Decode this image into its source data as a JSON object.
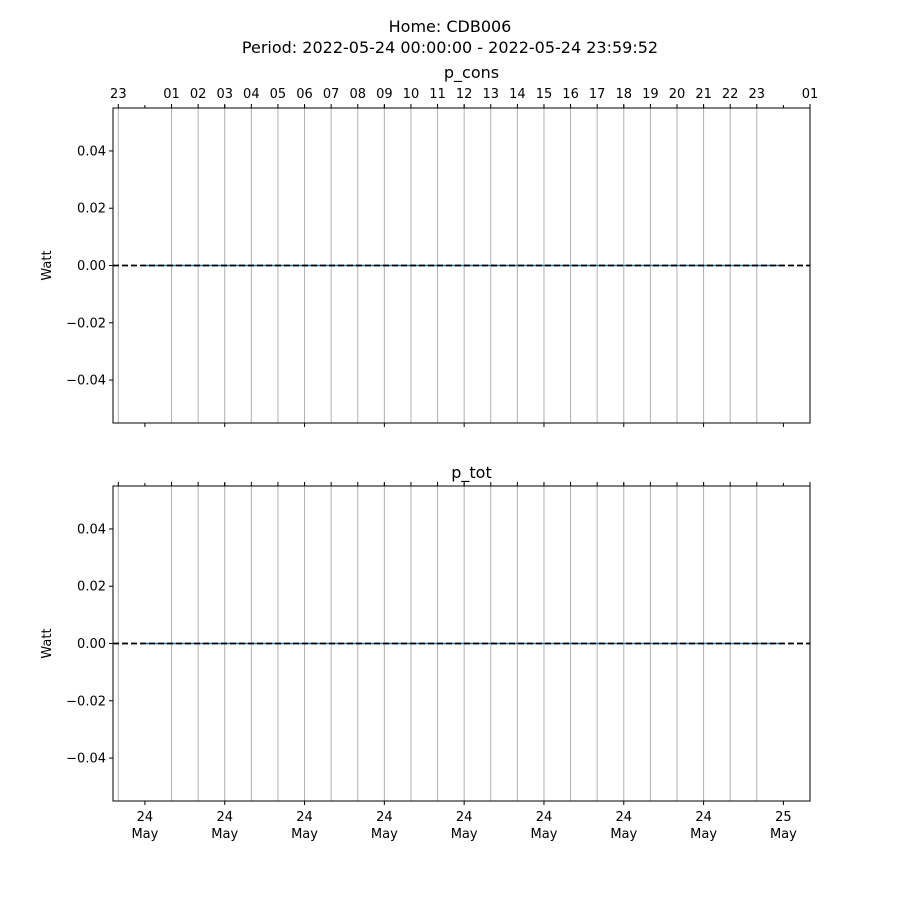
{
  "figure": {
    "title_line1": "Home: CDB006",
    "title_line2": "Period: 2022-05-24 00:00:00 - 2022-05-24 23:59:52"
  },
  "chart_data": [
    {
      "type": "line",
      "title": "p_cons",
      "ylabel": "Watt",
      "xlabel": "",
      "ylim": [
        -0.055,
        0.055
      ],
      "yticks": [
        -0.04,
        -0.02,
        0.0,
        0.02,
        0.04
      ],
      "yticklabels": [
        "−0.04",
        "−0.02",
        "0.00",
        "0.02",
        "0.04"
      ],
      "xlim": [
        -1.2,
        25.0
      ],
      "hour_ticks": [
        -1,
        1,
        2,
        3,
        4,
        5,
        6,
        7,
        8,
        9,
        10,
        11,
        12,
        13,
        14,
        15,
        16,
        17,
        18,
        19,
        20,
        21,
        22,
        23,
        25
      ],
      "hour_tick_labels": [
        "23",
        "01",
        "02",
        "03",
        "04",
        "05",
        "06",
        "07",
        "08",
        "09",
        "10",
        "11",
        "12",
        "13",
        "14",
        "15",
        "16",
        "17",
        "18",
        "19",
        "20",
        "21",
        "22",
        "23",
        "01"
      ],
      "day_ticks": [
        0,
        3,
        6,
        9,
        12,
        15,
        18,
        21,
        24
      ],
      "day_tick_labels": [],
      "grid": true,
      "series": [
        {
          "x": [
            0,
            24
          ],
          "y": [
            0,
            0
          ],
          "color": "#1f77b4"
        }
      ],
      "reference_line": {
        "y": 0,
        "style": "dashed",
        "color": "#000000"
      }
    },
    {
      "type": "line",
      "title": "p_tot",
      "ylabel": "Watt",
      "xlabel": "",
      "ylim": [
        -0.055,
        0.055
      ],
      "yticks": [
        -0.04,
        -0.02,
        0.0,
        0.02,
        0.04
      ],
      "yticklabels": [
        "−0.04",
        "−0.02",
        "0.00",
        "0.02",
        "0.04"
      ],
      "xlim": [
        -1.2,
        25.0
      ],
      "hour_ticks": [
        -1,
        1,
        2,
        3,
        4,
        5,
        6,
        7,
        8,
        9,
        10,
        11,
        12,
        13,
        14,
        15,
        16,
        17,
        18,
        19,
        20,
        21,
        22,
        23,
        25
      ],
      "hour_tick_labels": [],
      "day_ticks": [
        0,
        3,
        6,
        9,
        12,
        15,
        18,
        21,
        24
      ],
      "day_tick_labels": [
        [
          "24",
          "May"
        ],
        [
          "24",
          "May"
        ],
        [
          "24",
          "May"
        ],
        [
          "24",
          "May"
        ],
        [
          "24",
          "May"
        ],
        [
          "24",
          "May"
        ],
        [
          "24",
          "May"
        ],
        [
          "24",
          "May"
        ],
        [
          "25",
          "May"
        ]
      ],
      "grid": true,
      "series": [
        {
          "x": [
            0,
            24
          ],
          "y": [
            0,
            0
          ],
          "color": "#1f77b4"
        }
      ],
      "reference_line": {
        "y": 0,
        "style": "dashed",
        "color": "#000000"
      }
    }
  ]
}
